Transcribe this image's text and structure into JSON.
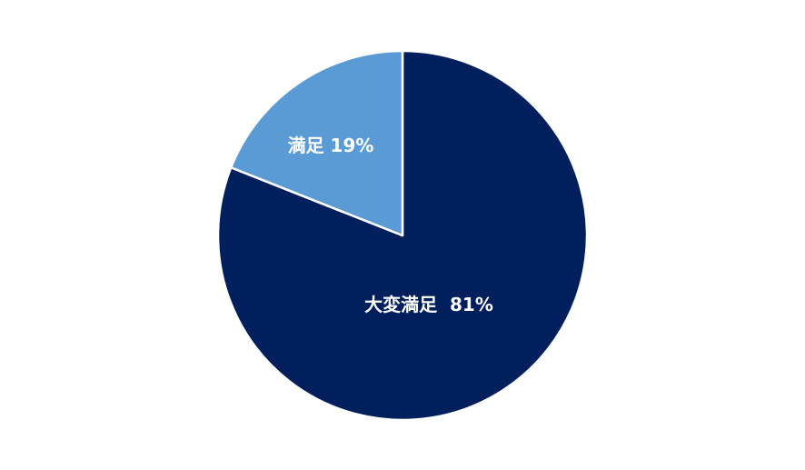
{
  "chart_data": {
    "type": "pie",
    "start_angle": "12 o'clock",
    "direction": "clockwise",
    "slices": [
      {
        "name": "大変満足",
        "value": 81,
        "label": "大変満足  81%",
        "color": "#001f5c"
      },
      {
        "name": "満足",
        "value": 19,
        "label": "満足 19%",
        "color": "#5b9bd5"
      }
    ],
    "slice_border_color": "#ffffff",
    "legend": "none"
  }
}
